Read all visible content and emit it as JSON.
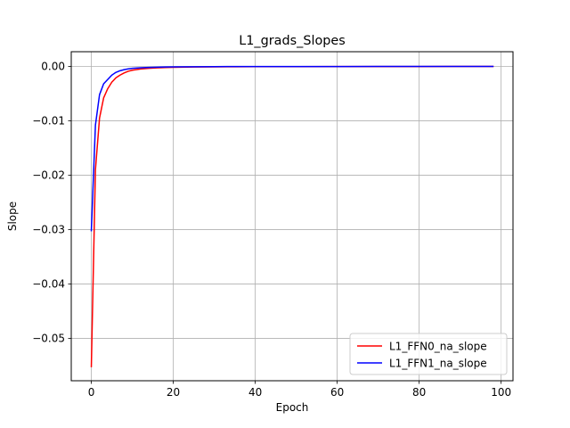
{
  "chart_data": {
    "type": "line",
    "title": "L1_grads_Slopes",
    "xlabel": "Epoch",
    "ylabel": "Slope",
    "xlim": [
      -4.9,
      102.9
    ],
    "ylim": [
      -0.0578,
      0.0027
    ],
    "xticks": [
      0,
      20,
      40,
      60,
      80,
      100
    ],
    "xtick_labels": [
      "0",
      "20",
      "40",
      "60",
      "80",
      "100"
    ],
    "yticks": [
      -0.05,
      -0.04,
      -0.03,
      -0.02,
      -0.01,
      0.0
    ],
    "ytick_labels": [
      "−0.05",
      "−0.04",
      "−0.03",
      "−0.02",
      "−0.01",
      "0.00"
    ],
    "grid": true,
    "legend_position": "lower-right",
    "series": [
      {
        "name": "L1_FFN0_na_slope",
        "color": "#ff0000",
        "x": [
          0,
          1,
          2,
          3,
          4,
          5,
          6,
          7,
          8,
          9,
          10,
          12,
          14,
          16,
          18,
          20,
          25,
          30,
          35,
          40,
          50,
          60,
          70,
          80,
          90,
          98
        ],
        "y": [
          -0.0552,
          -0.019,
          -0.0095,
          -0.0058,
          -0.0041,
          -0.0029,
          -0.0021,
          -0.0016,
          -0.0012,
          -0.0009,
          -0.0007,
          -0.00048,
          -0.00035,
          -0.00027,
          -0.00021,
          -0.00017,
          -0.00011,
          -8e-05,
          -6e-05,
          -5e-05,
          -4e-05,
          -3e-05,
          -2e-05,
          -2e-05,
          -1e-05,
          -1e-05
        ]
      },
      {
        "name": "L1_FFN1_na_slope",
        "color": "#0000ff",
        "x": [
          0,
          1,
          2,
          3,
          4,
          5,
          6,
          7,
          8,
          9,
          10,
          12,
          14,
          16,
          18,
          20,
          25,
          30,
          35,
          40,
          50,
          60,
          70,
          80,
          90,
          98
        ],
        "y": [
          -0.0302,
          -0.0108,
          -0.0052,
          -0.0032,
          -0.0024,
          -0.0016,
          -0.0011,
          -0.0008,
          -0.0006,
          -0.00045,
          -0.00035,
          -0.00025,
          -0.00018,
          -0.00014,
          -0.00011,
          -9e-05,
          -6e-05,
          -4e-05,
          -3e-05,
          -3e-05,
          -2e-05,
          -2e-05,
          -1e-05,
          -1e-05,
          -1e-05,
          -1e-05
        ]
      }
    ]
  }
}
